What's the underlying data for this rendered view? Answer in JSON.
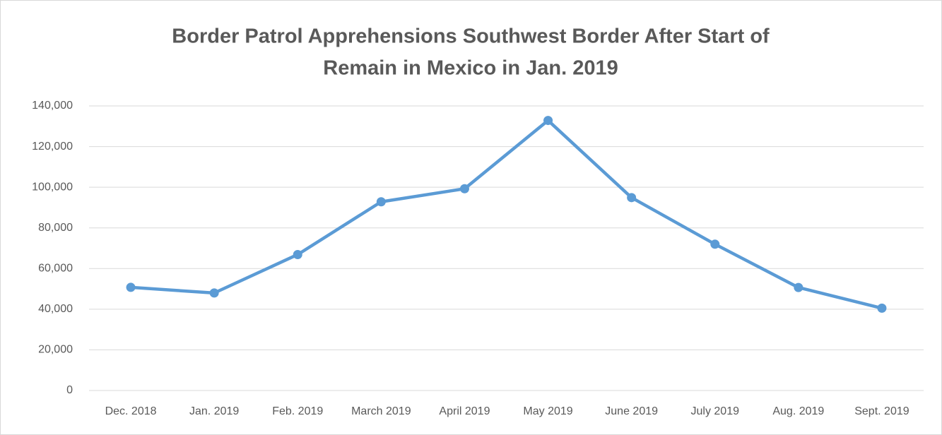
{
  "chart_data": {
    "type": "line",
    "title": [
      "Border Patrol Apprehensions Southwest Border After Start of",
      "Remain in Mexico in Jan. 2019"
    ],
    "categories": [
      "Dec. 2018",
      "Jan. 2019",
      "Feb. 2019",
      "March 2019",
      "April 2019",
      "May 2019",
      "June 2019",
      "July 2019",
      "Aug. 2019",
      "Sept. 2019"
    ],
    "series": [
      {
        "name": "Apprehensions",
        "color": "#5b9bd5",
        "values": [
          50749,
          47979,
          66884,
          92833,
          99273,
          132856,
          94902,
          71978,
          50684,
          40507
        ]
      }
    ],
    "ylim": [
      0,
      140000
    ],
    "yticks": [
      0,
      {
        "value": 20000,
        "label": "20,000"
      },
      {
        "value": 40000,
        "label": "40,000"
      },
      {
        "value": 60000,
        "label": "60,000"
      },
      {
        "value": 80000,
        "label": "80,000"
      },
      {
        "value": 100000,
        "label": "100,000"
      },
      {
        "value": 120000,
        "label": "120,000"
      },
      {
        "value": 140000,
        "label": "140,000"
      }
    ],
    "grid": true
  }
}
